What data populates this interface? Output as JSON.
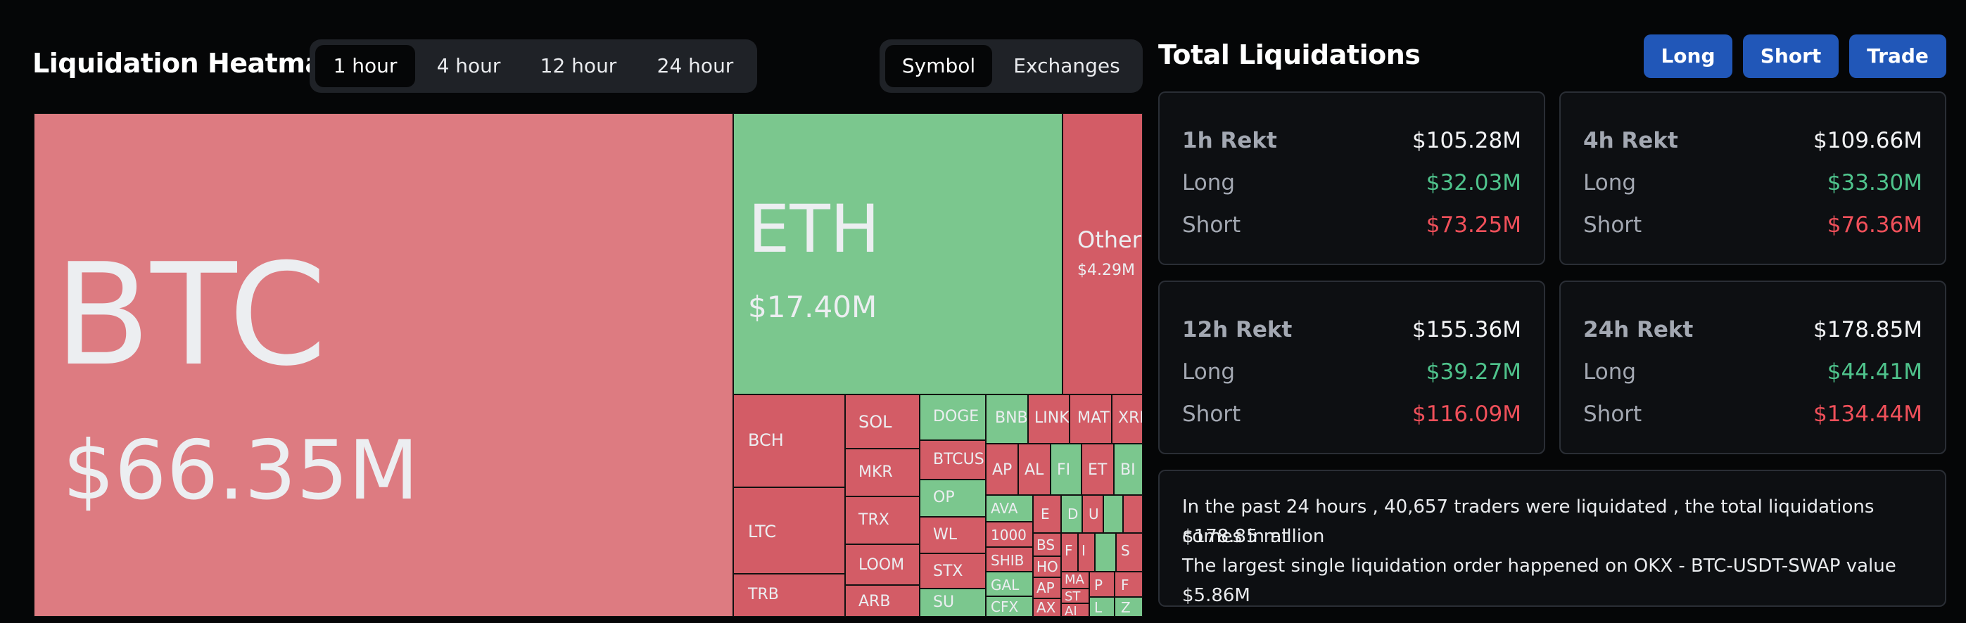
{
  "heatmap": {
    "title": "Liquidation Heatmap",
    "time_tabs": [
      "1 hour",
      "4 hour",
      "12 hour",
      "24 hour"
    ],
    "active_time_tab": "1 hour",
    "view_tabs": [
      "Symbol",
      "Exchanges"
    ],
    "active_view_tab": "Symbol",
    "tiles": [
      {
        "symbol": "BTC",
        "value": "$66.35M",
        "color": "#dd7b81"
      },
      {
        "symbol": "ETH",
        "value": "$17.40M",
        "color": "#7bc78e"
      },
      {
        "symbol": "Others",
        "value": "$4.29M",
        "color": "#d35c66"
      },
      {
        "symbol": "BCH",
        "color": "#d35c66"
      },
      {
        "symbol": "SOL",
        "color": "#d35c66"
      },
      {
        "symbol": "DOGE",
        "color": "#7bc78e"
      },
      {
        "symbol": "BNB",
        "color": "#7bc78e"
      },
      {
        "symbol": "LINK",
        "color": "#d35c66"
      },
      {
        "symbol": "MATIC",
        "color": "#d35c66"
      },
      {
        "symbol": "XRP",
        "color": "#d35c66"
      },
      {
        "symbol": "LTC",
        "color": "#d35c66"
      },
      {
        "symbol": "TRB",
        "color": "#d35c66"
      },
      {
        "symbol": "MKR",
        "color": "#d35c66"
      },
      {
        "symbol": "TRX",
        "color": "#d35c66"
      },
      {
        "symbol": "LOOM",
        "color": "#d35c66"
      },
      {
        "symbol": "ARB",
        "color": "#d35c66"
      },
      {
        "symbol": "BTCUS",
        "color": "#d35c66"
      },
      {
        "symbol": "OP",
        "color": "#7bc78e"
      },
      {
        "symbol": "WL",
        "color": "#d35c66"
      },
      {
        "symbol": "STX",
        "color": "#d35c66"
      },
      {
        "symbol": "SU",
        "color": "#7bc78e"
      },
      {
        "symbol": "AP",
        "color": "#d35c66"
      },
      {
        "symbol": "AL",
        "color": "#d35c66"
      },
      {
        "symbol": "FI",
        "color": "#7bc78e"
      },
      {
        "symbol": "ET",
        "color": "#d35c66"
      },
      {
        "symbol": "BI",
        "color": "#7bc78e"
      },
      {
        "symbol": "AVA",
        "color": "#7bc78e"
      },
      {
        "symbol": "1000",
        "color": "#d35c66"
      },
      {
        "symbol": "SHIB",
        "color": "#d35c66"
      },
      {
        "symbol": "GAL",
        "color": "#7bc78e"
      },
      {
        "symbol": "CFX",
        "color": "#7bc78e"
      },
      {
        "symbol": "E",
        "color": "#d35c66"
      },
      {
        "symbol": "D",
        "color": "#7bc78e"
      },
      {
        "symbol": "U",
        "color": "#d35c66"
      },
      {
        "symbol": "",
        "color": "#7bc78e"
      },
      {
        "symbol": "",
        "color": "#d35c66"
      },
      {
        "symbol": "BS",
        "color": "#d35c66"
      },
      {
        "symbol": "HO",
        "color": "#d35c66"
      },
      {
        "symbol": "AP",
        "color": "#d35c66"
      },
      {
        "symbol": "AX",
        "color": "#d35c66"
      },
      {
        "symbol": "F",
        "color": "#d35c66"
      },
      {
        "symbol": "I",
        "color": "#d35c66"
      },
      {
        "symbol": "",
        "color": "#7bc78e"
      },
      {
        "symbol": "S",
        "color": "#d35c66"
      },
      {
        "symbol": "MA",
        "color": "#d35c66"
      },
      {
        "symbol": "ST",
        "color": "#d35c66"
      },
      {
        "symbol": "AI",
        "color": "#d35c66"
      },
      {
        "symbol": "P",
        "color": "#d35c66"
      },
      {
        "symbol": "F",
        "color": "#d35c66"
      },
      {
        "symbol": "L",
        "color": "#7bc78e"
      },
      {
        "symbol": "Z",
        "color": "#7bc78e"
      }
    ]
  },
  "total": {
    "title": "Total Liquidations",
    "buttons": {
      "long": "Long",
      "short": "Short",
      "trade": "Trade"
    },
    "cards": [
      {
        "period": "1h Rekt",
        "total": "$105.28M",
        "long_label": "Long",
        "long": "$32.03M",
        "short_label": "Short",
        "short": "$73.25M"
      },
      {
        "period": "4h Rekt",
        "total": "$109.66M",
        "long_label": "Long",
        "long": "$33.30M",
        "short_label": "Short",
        "short": "$76.36M"
      },
      {
        "period": "12h Rekt",
        "total": "$155.36M",
        "long_label": "Long",
        "long": "$39.27M",
        "short_label": "Short",
        "short": "$116.09M"
      },
      {
        "period": "24h Rekt",
        "total": "$178.85M",
        "long_label": "Long",
        "long": "$44.41M",
        "short_label": "Short",
        "short": "$134.44M"
      }
    ],
    "summary_line1": "In the past 24 hours , 40,657 traders were liquidated , the total liquidations comes in at",
    "summary_line2": "$178.85 million",
    "summary_line3": "The largest single liquidation order happened on OKX - BTC-USDT-SWAP value $5.86M"
  }
}
